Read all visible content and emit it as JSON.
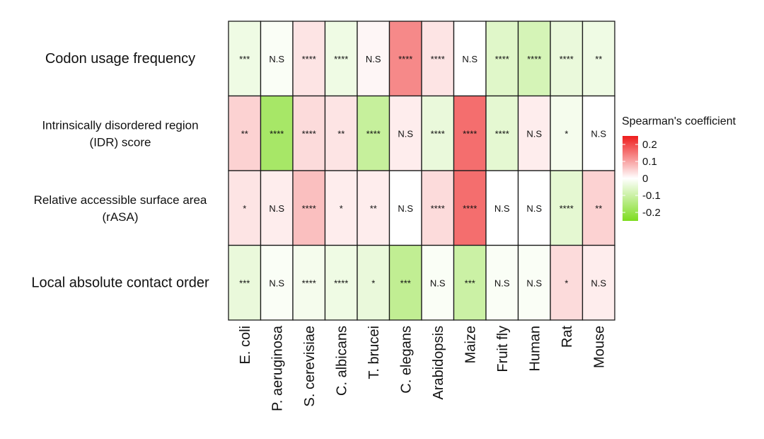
{
  "chart_data": {
    "type": "heatmap",
    "title": "",
    "legend": {
      "title": "Spearman's coefficient",
      "range": [
        -0.25,
        0.25
      ],
      "ticks": [
        0.2,
        0.1,
        0,
        -0.1,
        -0.2
      ],
      "tick_labels": [
        "0.2",
        "0.1",
        "0",
        "-0.1",
        "-0.2"
      ],
      "colors": {
        "negative": "#7ddc1f",
        "zero": "#ffffff",
        "positive": "#ee1c1c"
      }
    },
    "rows": [
      {
        "label_lines": [
          "Codon usage frequency"
        ]
      },
      {
        "label_lines": [
          "Intrinsically disordered region",
          "(IDR) score"
        ]
      },
      {
        "label_lines": [
          "Relative accessible surface area",
          "(rASA)"
        ]
      },
      {
        "label_lines": [
          "Local absolute contact order"
        ]
      }
    ],
    "columns": [
      "E. coli",
      "P. aeruginosa",
      "S. cerevisiae",
      "C. albicans",
      "T. brucei",
      "C. elegans",
      "Arabidopsis",
      "Maize",
      "Fruit fly",
      "Human",
      "Rat",
      "Mouse"
    ],
    "values": [
      [
        -0.03,
        -0.01,
        0.03,
        -0.03,
        0.01,
        0.13,
        0.03,
        0.0,
        -0.06,
        -0.08,
        -0.04,
        -0.03
      ],
      [
        0.05,
        -0.17,
        0.04,
        0.03,
        -0.11,
        0.02,
        -0.04,
        0.16,
        -0.05,
        0.02,
        -0.02,
        0.0
      ],
      [
        0.03,
        0.02,
        0.07,
        0.02,
        0.02,
        0.0,
        0.04,
        0.16,
        0.0,
        0.0,
        -0.05,
        0.05
      ],
      [
        -0.04,
        -0.01,
        -0.02,
        -0.03,
        -0.04,
        -0.12,
        -0.01,
        -0.1,
        -0.01,
        -0.01,
        0.04,
        0.02
      ]
    ],
    "significance": [
      [
        "***",
        "N.S",
        "****",
        "****",
        "N.S",
        "****",
        "****",
        "N.S",
        "****",
        "****",
        "****",
        "**"
      ],
      [
        "**",
        "****",
        "****",
        "**",
        "****",
        "N.S",
        "****",
        "****",
        "****",
        "N.S",
        "*",
        "N.S"
      ],
      [
        "*",
        "N.S",
        "****",
        "*",
        "**",
        "N.S",
        "****",
        "****",
        "N.S",
        "N.S",
        "****",
        "**"
      ],
      [
        "***",
        "N.S",
        "****",
        "****",
        "*",
        "***",
        "N.S",
        "***",
        "N.S",
        "N.S",
        "*",
        "N.S"
      ]
    ]
  }
}
